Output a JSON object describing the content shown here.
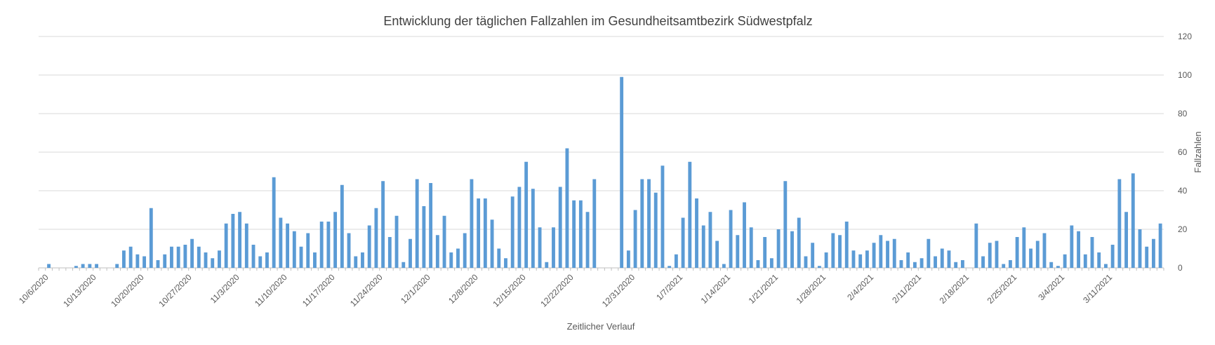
{
  "chart_data": {
    "type": "bar",
    "title": "Entwicklung der täglichen Fallzahlen im Gesundheitsamtbezirk Südwestpfalz",
    "xlabel": "Zeitlicher Verlauf",
    "ylabel": "Fallzahlen",
    "ylim": [
      0,
      120
    ],
    "yticks": [
      0,
      20,
      40,
      60,
      80,
      100,
      120
    ],
    "y_axis_side": "right",
    "grid": true,
    "start_date": "2020-10-05",
    "end_date": "2021-03-17",
    "x_tick_labels": [
      "10/6/2020",
      "10/13/2020",
      "10/20/2020",
      "10/27/2020",
      "11/3/2020",
      "11/10/2020",
      "11/17/2020",
      "11/24/2020",
      "12/1/2020",
      "12/8/2020",
      "12/15/2020",
      "12/22/2020",
      "12/31/2020",
      "1/7/2021",
      "1/14/2021",
      "1/21/2021",
      "1/28/2021",
      "2/4/2021",
      "2/11/2021",
      "2/18/2021",
      "2/25/2021",
      "3/4/2021",
      "3/11/2021"
    ],
    "bar_color": "#5b9bd5",
    "series": [
      {
        "values": [
          0,
          2,
          0,
          0,
          0,
          1,
          2,
          2,
          2,
          0,
          0,
          2,
          9,
          11,
          7,
          6,
          31,
          4,
          7,
          11,
          11,
          12,
          15,
          11,
          8,
          5,
          9,
          23,
          28,
          29,
          23,
          12,
          6,
          8,
          47,
          26,
          23,
          19,
          11,
          18,
          8,
          24,
          24,
          29,
          43,
          18,
          6,
          8,
          22,
          31,
          45,
          16,
          27,
          3,
          15,
          46,
          32,
          44,
          17,
          27,
          8,
          10,
          18,
          46,
          36,
          36,
          25,
          10,
          5,
          37,
          42,
          55,
          41,
          21,
          3,
          21,
          42,
          62,
          35,
          35,
          29,
          46,
          0,
          0,
          0,
          99,
          9,
          30,
          46,
          46,
          39,
          53,
          1,
          7,
          26,
          55,
          36,
          22,
          29,
          14,
          2,
          30,
          17,
          34,
          21,
          4,
          16,
          5,
          20,
          45,
          19,
          26,
          6,
          13,
          1,
          8,
          18,
          17,
          24,
          9,
          7,
          9,
          13,
          17,
          14,
          15,
          4,
          8,
          3,
          5,
          15,
          6,
          10,
          9,
          3,
          4,
          0,
          23,
          6,
          13,
          14,
          2,
          4,
          16,
          21,
          10,
          14,
          18,
          3,
          1,
          7,
          22,
          19,
          7,
          16,
          8,
          2,
          12,
          46,
          29,
          49,
          20,
          11,
          15,
          23
        ]
      }
    ]
  }
}
